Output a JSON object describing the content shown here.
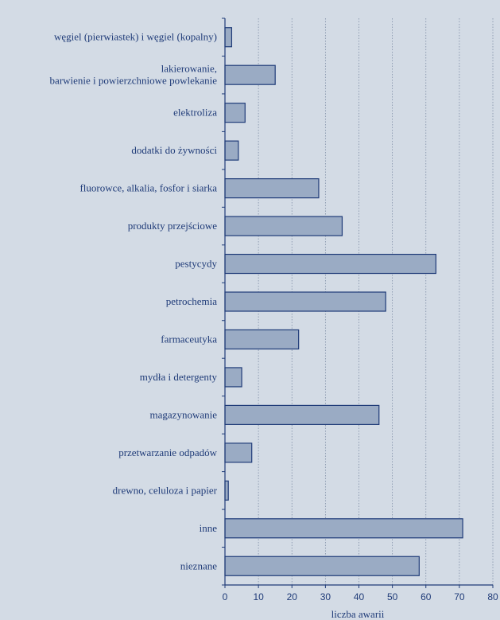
{
  "colors": {
    "panel_background": "#d3dbe5",
    "bar_fill": "#9aabc4",
    "bar_stroke": "#1f3b78",
    "axis": "#1f3b78",
    "grid": "#7f8ea6",
    "text": "#1f3b78"
  },
  "chart_data": {
    "type": "bar",
    "orientation": "horizontal",
    "categories": [
      [
        "węgiel (pierwiastek) i węgiel (kopalny)"
      ],
      [
        "lakierowanie,",
        "barwienie i powierzchniowe powlekanie"
      ],
      [
        "elektroliza"
      ],
      [
        "dodatki do żywności"
      ],
      [
        "fluorowce, alkalia, fosfor i siarka"
      ],
      [
        "produkty przejściowe"
      ],
      [
        "pestycydy"
      ],
      [
        "petrochemia"
      ],
      [
        "farmaceutyka"
      ],
      [
        "mydła i detergenty"
      ],
      [
        "magazynowanie"
      ],
      [
        "przetwarzanie odpadów"
      ],
      [
        "drewno, celuloza i papier"
      ],
      [
        "inne"
      ],
      [
        "nieznane"
      ]
    ],
    "values": [
      2,
      15,
      6,
      4,
      28,
      35,
      63,
      48,
      22,
      5,
      46,
      8,
      1,
      71,
      58
    ],
    "xlabel": "liczba awarii",
    "ylabel": "",
    "xlim": [
      0,
      80
    ],
    "xticks": [
      0,
      10,
      20,
      30,
      40,
      50,
      60,
      70,
      80
    ],
    "grid": "vertical dotted",
    "legend": "none"
  }
}
